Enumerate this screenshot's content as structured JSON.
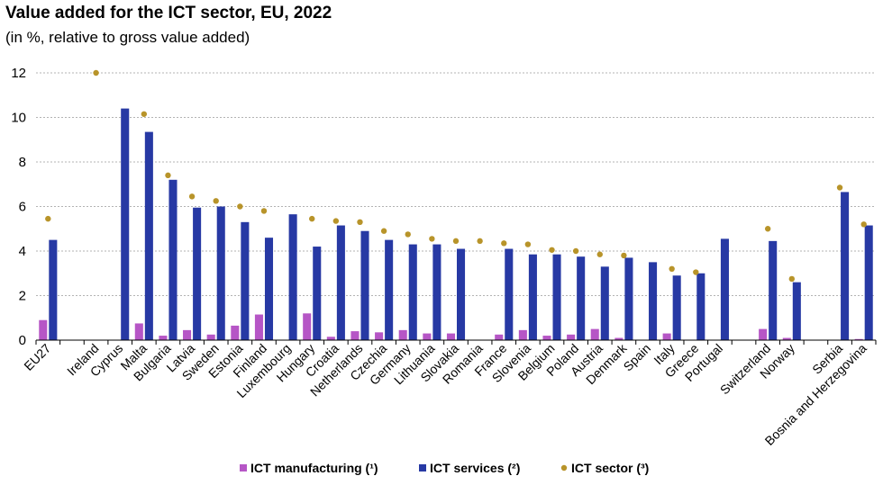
{
  "chart_data": {
    "type": "bar",
    "title": "Value added for the ICT sector, EU, 2022",
    "subtitle": "(in %, relative to gross value added)",
    "ylim": [
      0,
      12
    ],
    "yticks": [
      0,
      2,
      4,
      6,
      8,
      10,
      12
    ],
    "grid": true,
    "legend_position": "bottom",
    "categories": [
      "EU27",
      "",
      "Ireland",
      "Cyprus",
      "Malta",
      "Bulgaria",
      "Latvia",
      "Sweden",
      "Estonia",
      "Finland",
      "Luxembourg",
      "Hungary",
      "Croatia",
      "Netherlands",
      "Czechia",
      "Germany",
      "Lithuania",
      "Slovakia",
      "Romania",
      "France",
      "Slovenia",
      "Belgium",
      "Poland",
      "Austria",
      "Denmark",
      "Spain",
      "Italy",
      "Greece",
      "Portugal",
      "",
      "Switzerland",
      "Norway",
      "",
      "Serbia",
      "Bosnia and Herzegovina"
    ],
    "series": [
      {
        "name": "ICT manufacturing (¹)",
        "type": "bar",
        "color": "#b656c6",
        "values": [
          0.9,
          null,
          null,
          null,
          0.75,
          0.2,
          0.45,
          0.25,
          0.65,
          1.15,
          null,
          1.2,
          0.15,
          0.4,
          0.35,
          0.45,
          0.3,
          0.3,
          null,
          0.25,
          0.45,
          0.2,
          0.25,
          0.5,
          0.1,
          null,
          0.3,
          null,
          null,
          null,
          0.5,
          0.1,
          null,
          null,
          0.05
        ]
      },
      {
        "name": "ICT services (²)",
        "type": "bar",
        "color": "#2739a4",
        "values": [
          4.5,
          null,
          null,
          10.4,
          9.35,
          7.2,
          5.95,
          6.0,
          5.3,
          4.6,
          5.65,
          4.2,
          5.15,
          4.9,
          4.5,
          4.3,
          4.3,
          4.1,
          null,
          4.1,
          3.85,
          3.85,
          3.75,
          3.3,
          3.7,
          3.5,
          2.9,
          3.0,
          4.55,
          null,
          4.45,
          2.6,
          null,
          6.65,
          5.15
        ]
      },
      {
        "name": "ICT sector (³)",
        "type": "dot",
        "color": "#b8942a",
        "values": [
          5.45,
          null,
          12.0,
          null,
          10.15,
          7.4,
          6.45,
          6.25,
          6.0,
          5.8,
          null,
          5.45,
          5.35,
          5.3,
          4.9,
          4.75,
          4.55,
          4.45,
          4.45,
          4.35,
          4.3,
          4.05,
          4.0,
          3.85,
          3.8,
          null,
          3.2,
          3.05,
          null,
          null,
          5.0,
          2.75,
          null,
          6.85,
          5.2
        ]
      }
    ]
  }
}
